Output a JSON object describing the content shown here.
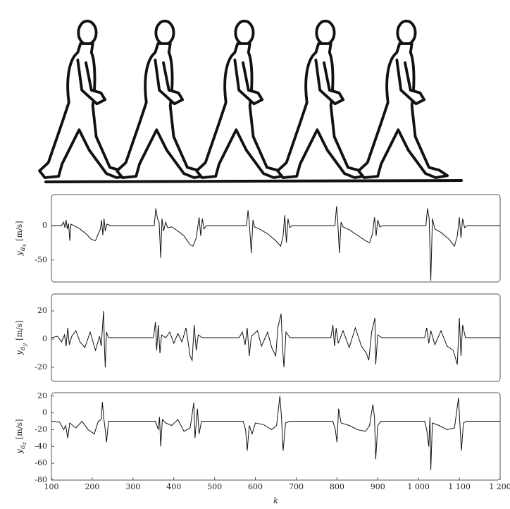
{
  "chart_data": [
    {
      "type": "line",
      "ylabel": {
        "symbol": "y",
        "sub": "a",
        "subsub": "x",
        "unit": "[m/s]"
      },
      "xlim": [
        100,
        1200
      ],
      "ylim": [
        -82,
        45
      ],
      "yticks": [
        0,
        -50
      ],
      "series": [
        {
          "color": "#111111",
          "x": [
            100,
            125,
            130,
            133,
            136,
            139,
            142,
            145,
            148,
            155,
            170,
            185,
            198,
            208,
            215,
            220,
            223,
            226,
            229,
            232,
            236,
            245,
            352,
            356,
            360,
            364,
            368,
            371,
            375,
            380,
            385,
            395,
            410,
            425,
            440,
            447,
            455,
            462,
            466,
            470,
            474,
            480,
            578,
            582,
            585,
            590,
            594,
            598,
            610,
            630,
            650,
            662,
            668,
            672,
            676,
            680,
            684,
            690,
            795,
            799,
            802,
            806,
            810,
            815,
            830,
            850,
            870,
            880,
            887,
            892,
            896,
            900,
            905,
            912,
            1018,
            1022,
            1026,
            1030,
            1034,
            1040,
            1055,
            1075,
            1088,
            1095,
            1100,
            1104,
            1108,
            1113,
            1120,
            1200
          ],
          "values": [
            0,
            0,
            5,
            -3,
            8,
            -5,
            3,
            -22,
            2,
            0,
            -5,
            -12,
            -20,
            -22,
            -12,
            -5,
            8,
            -14,
            10,
            -8,
            2,
            0,
            0,
            25,
            10,
            5,
            -47,
            10,
            -8,
            5,
            -3,
            -2,
            -8,
            -15,
            -28,
            -30,
            -18,
            12,
            -15,
            10,
            -5,
            0,
            0,
            22,
            5,
            -40,
            8,
            -2,
            -5,
            -12,
            -22,
            -30,
            -15,
            15,
            -25,
            10,
            -3,
            0,
            0,
            28,
            5,
            -40,
            5,
            -2,
            -6,
            -14,
            -22,
            -25,
            -12,
            12,
            -15,
            8,
            -2,
            0,
            0,
            25,
            10,
            -80,
            10,
            -5,
            -10,
            -20,
            -30,
            -15,
            12,
            -18,
            10,
            -3,
            0,
            0
          ]
        }
      ]
    },
    {
      "type": "line",
      "ylabel": {
        "symbol": "y",
        "sub": "a",
        "subsub": "y",
        "unit": "[m/s]"
      },
      "xlim": [
        100,
        1200
      ],
      "ylim": [
        -30,
        32
      ],
      "yticks": [
        20,
        0,
        -20
      ],
      "series": [
        {
          "color": "#111111",
          "x": [
            100,
            115,
            125,
            132,
            136,
            140,
            144,
            150,
            160,
            170,
            182,
            195,
            208,
            218,
            222,
            226,
            228,
            230,
            232,
            235,
            240,
            350,
            355,
            358,
            362,
            366,
            370,
            380,
            390,
            400,
            410,
            420,
            430,
            440,
            445,
            450,
            455,
            460,
            470,
            560,
            568,
            575,
            580,
            585,
            590,
            605,
            615,
            630,
            640,
            650,
            655,
            663,
            667,
            670,
            675,
            685,
            785,
            790,
            794,
            798,
            803,
            815,
            830,
            845,
            860,
            872,
            878,
            885,
            893,
            895,
            900,
            910,
            1015,
            1020,
            1025,
            1030,
            1040,
            1055,
            1070,
            1085,
            1095,
            1100,
            1104,
            1108,
            1115,
            1200
          ],
          "values": [
            1,
            2,
            -2,
            3,
            -5,
            8,
            -4,
            2,
            6,
            -2,
            -6,
            5,
            -8,
            2,
            -5,
            12,
            20,
            -6,
            -20,
            5,
            1,
            1,
            12,
            -8,
            10,
            -10,
            3,
            1,
            5,
            -3,
            4,
            -2,
            8,
            -12,
            -15,
            10,
            -8,
            3,
            1,
            1,
            5,
            -4,
            8,
            -12,
            2,
            6,
            -5,
            5,
            -6,
            -12,
            8,
            18,
            -8,
            -20,
            5,
            1,
            1,
            10,
            -5,
            8,
            -3,
            6,
            -6,
            8,
            -5,
            -10,
            -15,
            5,
            15,
            -18,
            3,
            1,
            1,
            8,
            -3,
            6,
            -4,
            6,
            -5,
            -8,
            -18,
            15,
            -12,
            10,
            1,
            1
          ]
        }
      ]
    },
    {
      "type": "line",
      "ylabel": {
        "symbol": "y",
        "sub": "a",
        "subsub": "z",
        "unit": "[m/s]"
      },
      "xlabel": "k",
      "xlim": [
        100,
        1200
      ],
      "ylim": [
        -80,
        24
      ],
      "xticks": [
        100,
        200,
        300,
        400,
        500,
        600,
        700,
        800,
        900,
        {
          "value": 1000,
          "label": "1 000"
        },
        {
          "value": 1100,
          "label": "1 100"
        },
        {
          "value": 1200,
          "label": "1 200"
        }
      ],
      "yticks": [
        20,
        0,
        -20,
        -40,
        -60,
        -80
      ],
      "series": [
        {
          "color": "#111111",
          "x": [
            100,
            120,
            130,
            135,
            140,
            145,
            160,
            175,
            190,
            205,
            215,
            222,
            225,
            228,
            232,
            235,
            240,
            355,
            362,
            365,
            368,
            372,
            380,
            395,
            410,
            425,
            440,
            449,
            452,
            458,
            462,
            468,
            570,
            576,
            580,
            585,
            592,
            600,
            620,
            640,
            652,
            660,
            664,
            668,
            674,
            685,
            790,
            796,
            800,
            804,
            810,
            830,
            850,
            870,
            880,
            888,
            892,
            895,
            900,
            908,
            1015,
            1020,
            1025,
            1028,
            1030,
            1034,
            1050,
            1070,
            1088,
            1098,
            1101,
            1105,
            1110,
            1118,
            1200
          ],
          "values": [
            -10,
            -11,
            -20,
            -15,
            -30,
            -12,
            -18,
            -10,
            -20,
            -25,
            -10,
            -8,
            13,
            -5,
            -20,
            -35,
            -10,
            -10,
            -20,
            -5,
            -40,
            -8,
            -12,
            -15,
            -8,
            -22,
            -18,
            12,
            -30,
            5,
            -25,
            -10,
            -10,
            -20,
            -45,
            -15,
            -25,
            -12,
            -14,
            -20,
            -15,
            20,
            -5,
            -45,
            -12,
            -10,
            -10,
            -20,
            -35,
            5,
            -12,
            -15,
            -20,
            -22,
            -15,
            10,
            -5,
            -55,
            -15,
            -10,
            -10,
            -20,
            -40,
            -5,
            -68,
            -12,
            -15,
            -20,
            -18,
            18,
            -10,
            -45,
            -12,
            -10,
            -10
          ]
        }
      ]
    }
  ]
}
